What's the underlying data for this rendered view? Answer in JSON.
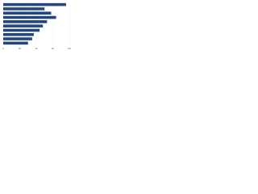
{
  "chart_data": {
    "type": "bar",
    "orientation": "horizontal",
    "categories": [
      null,
      null,
      null,
      null,
      null,
      null,
      null,
      null,
      null,
      null
    ],
    "values": [
      76,
      50,
      58,
      64,
      53,
      48,
      44,
      37,
      35,
      30
    ],
    "color": "#23467f",
    "xlim": [
      0,
      80
    ],
    "xticks": [
      0,
      20,
      40,
      60,
      80
    ],
    "grid": true
  }
}
